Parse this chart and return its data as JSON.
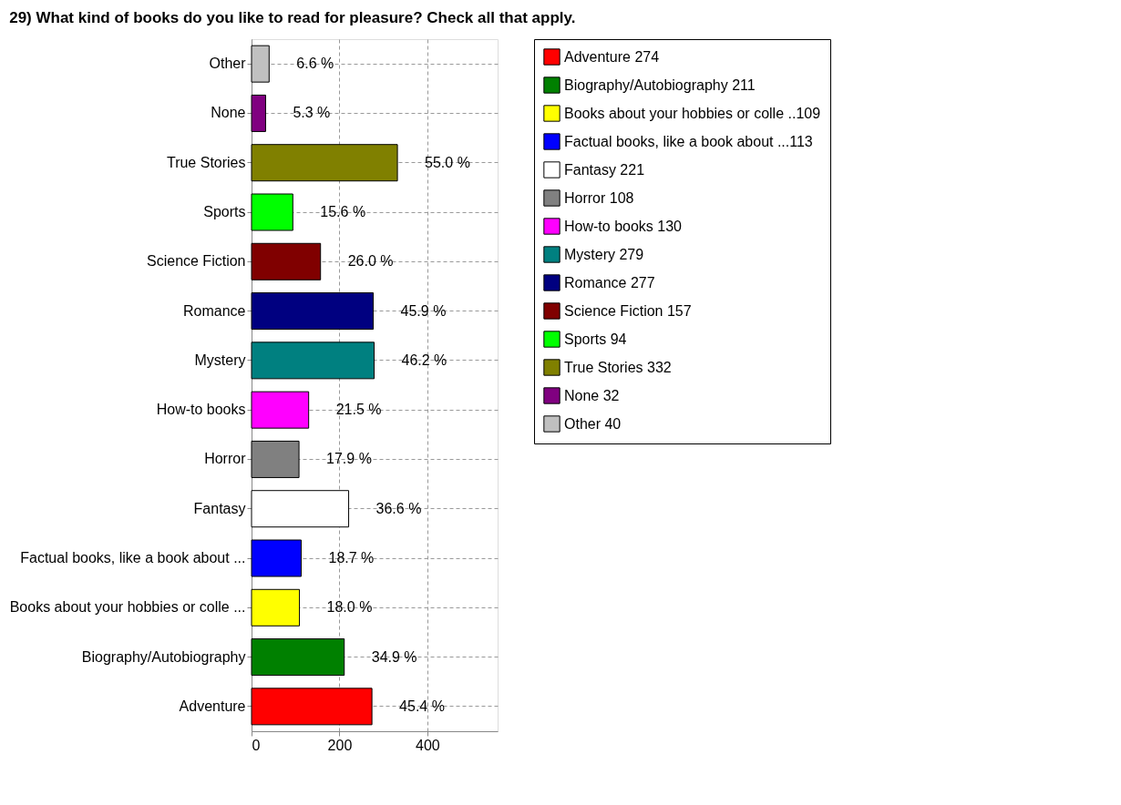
{
  "chart_data": {
    "type": "bar",
    "orientation": "horizontal",
    "title": "29) What kind of books do you like to read for pleasure? Check all that apply.",
    "categories": [
      "Other",
      "None",
      "True Stories",
      "Sports",
      "Science Fiction",
      "Romance",
      "Mystery",
      "How-to books",
      "Horror",
      "Fantasy",
      "Factual books, like a book about  ...",
      "Books about your hobbies or colle ...",
      "Biography/Autobiography",
      "Adventure"
    ],
    "series": [
      {
        "name": "Adventure 274",
        "color": "#ff0000",
        "values": [
          null,
          null,
          null,
          null,
          null,
          null,
          null,
          null,
          null,
          null,
          null,
          null,
          null,
          274
        ]
      },
      {
        "name": "Biography/Autobiography 211",
        "color": "#008000",
        "values": [
          null,
          null,
          null,
          null,
          null,
          null,
          null,
          null,
          null,
          null,
          null,
          null,
          211,
          null
        ]
      },
      {
        "name": "Books about your hobbies or colle ..109",
        "color": "#ffff00",
        "values": [
          null,
          null,
          null,
          null,
          null,
          null,
          null,
          null,
          null,
          null,
          null,
          109,
          null,
          null
        ]
      },
      {
        "name": "Factual books, like a book about  ...113",
        "color": "#0000ff",
        "values": [
          null,
          null,
          null,
          null,
          null,
          null,
          null,
          null,
          null,
          null,
          113,
          null,
          null,
          null
        ]
      },
      {
        "name": "Fantasy 221",
        "color": "#ffffff",
        "values": [
          null,
          null,
          null,
          null,
          null,
          null,
          null,
          null,
          null,
          221,
          null,
          null,
          null,
          null
        ]
      },
      {
        "name": "Horror 108",
        "color": "#808080",
        "values": [
          null,
          null,
          null,
          null,
          null,
          null,
          null,
          null,
          108,
          null,
          null,
          null,
          null,
          null
        ]
      },
      {
        "name": "How-to books 130",
        "color": "#ff00ff",
        "values": [
          null,
          null,
          null,
          null,
          null,
          null,
          null,
          130,
          null,
          null,
          null,
          null,
          null,
          null
        ]
      },
      {
        "name": "Mystery 279",
        "color": "#008080",
        "values": [
          null,
          null,
          null,
          null,
          null,
          null,
          279,
          null,
          null,
          null,
          null,
          null,
          null,
          null
        ]
      },
      {
        "name": "Romance 277",
        "color": "#000080",
        "values": [
          null,
          null,
          null,
          null,
          null,
          277,
          null,
          null,
          null,
          null,
          null,
          null,
          null,
          null
        ]
      },
      {
        "name": "Science Fiction 157",
        "color": "#800000",
        "values": [
          null,
          null,
          null,
          null,
          157,
          null,
          null,
          null,
          null,
          null,
          null,
          null,
          null,
          null
        ]
      },
      {
        "name": "Sports 94",
        "color": "#00ff00",
        "values": [
          null,
          null,
          null,
          94,
          null,
          null,
          null,
          null,
          null,
          null,
          null,
          null,
          null,
          null
        ]
      },
      {
        "name": "True Stories 332",
        "color": "#808000",
        "values": [
          null,
          null,
          332,
          null,
          null,
          null,
          null,
          null,
          null,
          null,
          null,
          null,
          null,
          null
        ]
      },
      {
        "name": "None 32",
        "color": "#800080",
        "values": [
          null,
          32,
          null,
          null,
          null,
          null,
          null,
          null,
          null,
          null,
          null,
          null,
          null,
          null
        ]
      },
      {
        "name": "Other 40",
        "color": "#c0c0c0",
        "values": [
          40,
          null,
          null,
          null,
          null,
          null,
          null,
          null,
          null,
          null,
          null,
          null,
          null,
          null
        ]
      }
    ],
    "annotations": [
      {
        "text": "6.6 %",
        "x": 40,
        "y": "Other"
      },
      {
        "text": "5.3 %",
        "x": 32,
        "y": "None"
      },
      {
        "text": "55.0 %",
        "x": 332,
        "y": "True Stories"
      },
      {
        "text": "15.6 %",
        "x": 94,
        "y": "Sports"
      },
      {
        "text": "26.0 %",
        "x": 157,
        "y": "Science Fiction"
      },
      {
        "text": "45.9 %",
        "x": 277,
        "y": "Romance"
      },
      {
        "text": "46.2 %",
        "x": 279,
        "y": "Mystery"
      },
      {
        "text": "21.5 %",
        "x": 130,
        "y": "How-to books"
      },
      {
        "text": "17.9 %",
        "x": 108,
        "y": "Horror"
      },
      {
        "text": "36.6 %",
        "x": 221,
        "y": "Fantasy"
      },
      {
        "text": "18.7 %",
        "x": 113,
        "y": "Factual books, like a book about  ..."
      },
      {
        "text": "18.0 %",
        "x": 109,
        "y": "Books about your hobbies or colle ..."
      },
      {
        "text": "34.9 %",
        "x": 211,
        "y": "Biography/Autobiography"
      },
      {
        "text": "45.4 %",
        "x": 274,
        "y": "Adventure"
      }
    ],
    "xlim": [
      0,
      560
    ],
    "xticks": [
      0,
      200,
      400
    ],
    "grid": true,
    "legend": "top right"
  }
}
